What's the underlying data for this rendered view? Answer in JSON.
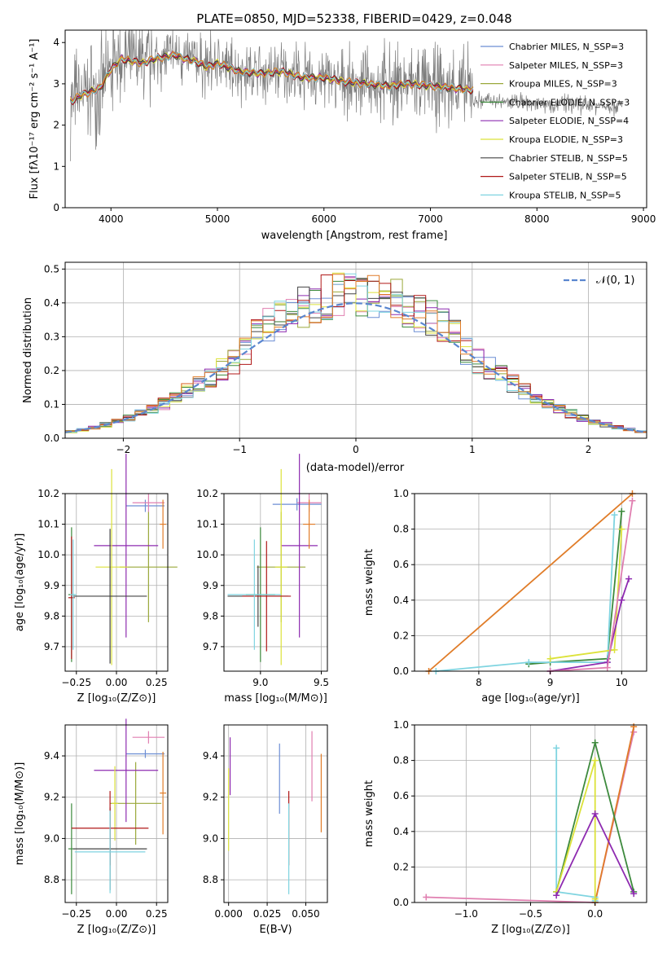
{
  "colors": [
    "#6c8ed4",
    "#e07fb0",
    "#9aa83a",
    "#3d8a3d",
    "#8e2bb0",
    "#dce23a",
    "#444444",
    "#b01818",
    "#7fd4e0"
  ],
  "chart_data": [
    {
      "id": "spectrum",
      "type": "line",
      "title": "PLATE=0850, MJD=52338, FIBERID=0429, z=0.048",
      "xlabel": "wavelength [Angstrom, rest frame]",
      "ylabel": "Flux [fλ10⁻¹⁷ erg cm⁻² s⁻¹ A⁻¹]",
      "xlim": [
        3570,
        9030
      ],
      "ylim": [
        0,
        4.3
      ],
      "xticks": [
        4000,
        5000,
        6000,
        7000,
        8000,
        9000
      ],
      "yticks": [
        0,
        1,
        2,
        3,
        4
      ],
      "legend_position": "upper-right",
      "series": [
        {
          "name": "Chabrier MILES, N_SSP=3"
        },
        {
          "name": "Salpeter MILES, N_SSP=3"
        },
        {
          "name": "Kroupa MILES, N_SSP=3"
        },
        {
          "name": "Chabrier ELODIE, N_SSP=3"
        },
        {
          "name": "Salpeter ELODIE, N_SSP=4"
        },
        {
          "name": "Kroupa ELODIE, N_SSP=3"
        },
        {
          "name": "Chabrier STELIB, N_SSP=5"
        },
        {
          "name": "Salpeter STELIB, N_SSP=5"
        },
        {
          "name": "Kroupa STELIB, N_SSP=5"
        }
      ],
      "model_curve": {
        "x": [
          3650,
          3700,
          3800,
          3900,
          4000,
          4100,
          4200,
          4300,
          4400,
          4500,
          4600,
          4700,
          4800,
          4900,
          5000,
          5200,
          5400,
          5600,
          5800,
          6000,
          6200,
          6400,
          6600,
          6800,
          7000,
          7200,
          7400
        ],
        "y": [
          2.6,
          2.7,
          2.8,
          2.9,
          3.35,
          3.6,
          3.55,
          3.5,
          3.6,
          3.65,
          3.7,
          3.6,
          3.55,
          3.4,
          3.5,
          3.3,
          3.25,
          3.3,
          3.15,
          3.15,
          3.05,
          3.0,
          2.95,
          3.0,
          2.95,
          2.9,
          2.85
        ]
      }
    },
    {
      "id": "residuals",
      "type": "bar",
      "xlabel": "(data-model)/error",
      "ylabel": "Normed distribution",
      "xlim": [
        -2.5,
        2.5
      ],
      "ylim": [
        0,
        0.52
      ],
      "xticks": [
        -2,
        -1,
        0,
        1,
        2
      ],
      "yticks": [
        0.0,
        0.1,
        0.2,
        0.3,
        0.4,
        0.5
      ],
      "legend": "𝒩(0, 1)",
      "legend_position": "upper-right",
      "bin_width": 0.1,
      "bin_start": -2.5
    },
    {
      "id": "age_vs_Z",
      "type": "scatter",
      "xlabel": "Z [log₁₀(Z/Z⊙)]",
      "ylabel": "age  [log₁₀(age/yr)]",
      "xlim": [
        -0.32,
        0.32
      ],
      "ylim": [
        9.62,
        10.2
      ],
      "xticks": [
        -0.25,
        0.0,
        0.25
      ],
      "yticks": [
        9.7,
        9.8,
        9.9,
        10.0,
        10.1,
        10.2
      ],
      "points": [
        {
          "c": 0,
          "x": 0.18,
          "y": 10.16,
          "xe": 0.12,
          "ye": 0.02
        },
        {
          "c": 1,
          "x": 0.2,
          "y": 10.17,
          "xe": 0.1,
          "ye": 0.03
        },
        {
          "c": 2,
          "x": 0.2,
          "y": 9.96,
          "xe": 0.18,
          "ye": 0.18
        },
        {
          "c": 3,
          "x": -0.28,
          "y": 9.87,
          "xe": 0.02,
          "ye": 0.22
        },
        {
          "c": 4,
          "x": 0.06,
          "y": 10.03,
          "xe": 0.2,
          "ye": 0.3
        },
        {
          "c": 5,
          "x": -0.03,
          "y": 9.96,
          "xe": 0.1,
          "ye": 0.32
        },
        {
          "c": 6,
          "x": -0.04,
          "y": 9.865,
          "xe": 0.23,
          "ye": 0.22
        },
        {
          "c": 7,
          "x": -0.28,
          "y": 9.86,
          "xe": 0.02,
          "ye": 0.2
        },
        {
          "c": 8,
          "x": -0.27,
          "y": 9.87,
          "xe": 0.02,
          "ye": 0.18
        },
        {
          "c": 9,
          "x": 0.29,
          "y": 10.1,
          "xe": 0.02,
          "ye": 0.08
        }
      ]
    },
    {
      "id": "age_vs_mass",
      "type": "scatter",
      "xlabel": "mass [log₁₀(M/M⊙)]",
      "ylabel": "",
      "xlim": [
        8.7,
        9.55
      ],
      "ylim": [
        9.62,
        10.2
      ],
      "xticks": [
        9.0,
        9.5
      ],
      "yticks": [
        9.7,
        9.8,
        9.9,
        10.0,
        10.1,
        10.2
      ],
      "points": [
        {
          "c": 0,
          "x": 9.3,
          "y": 10.165,
          "xe": 0.2,
          "ye": 0.02
        },
        {
          "c": 1,
          "x": 9.4,
          "y": 10.17,
          "xe": 0.1,
          "ye": 0.03
        },
        {
          "c": 2,
          "x": 9.17,
          "y": 9.96,
          "xe": 0.2,
          "ye": 0.18
        },
        {
          "c": 3,
          "x": 9.0,
          "y": 9.87,
          "xe": 0.12,
          "ye": 0.22
        },
        {
          "c": 4,
          "x": 9.32,
          "y": 10.03,
          "xe": 0.15,
          "ye": 0.3
        },
        {
          "c": 5,
          "x": 9.17,
          "y": 9.96,
          "xe": 0.05,
          "ye": 0.32
        },
        {
          "c": 6,
          "x": 8.98,
          "y": 9.865,
          "xe": 0.25,
          "ye": 0.1
        },
        {
          "c": 7,
          "x": 9.05,
          "y": 9.865,
          "xe": 0.2,
          "ye": 0.18
        },
        {
          "c": 8,
          "x": 8.95,
          "y": 9.87,
          "xe": 0.22,
          "ye": 0.18
        },
        {
          "c": 9,
          "x": 9.4,
          "y": 10.1,
          "xe": 0.05,
          "ye": 0.08
        }
      ]
    },
    {
      "id": "weight_vs_age",
      "type": "line",
      "xlabel": "age  [log₁₀(age/yr)]",
      "ylabel": "mass weight",
      "xlim": [
        7.1,
        10.35
      ],
      "ylim": [
        0,
        1.0
      ],
      "xticks": [
        8,
        9,
        10
      ],
      "yticks": [
        0.0,
        0.2,
        0.4,
        0.6,
        0.8,
        1.0
      ],
      "series": [
        {
          "c": 9,
          "x": [
            7.3,
            10.15
          ],
          "y": [
            0.0,
            1.0
          ]
        },
        {
          "c": 3,
          "x": [
            8.7,
            9.0,
            9.8,
            10.0
          ],
          "y": [
            0.04,
            0.05,
            0.07,
            0.9
          ]
        },
        {
          "c": 8,
          "x": [
            7.4,
            8.7,
            9.8,
            9.9
          ],
          "y": [
            0.0,
            0.05,
            0.05,
            0.88
          ]
        },
        {
          "c": 5,
          "x": [
            9.0,
            9.9,
            10.0
          ],
          "y": [
            0.07,
            0.12,
            0.8
          ]
        },
        {
          "c": 4,
          "x": [
            9.0,
            9.8,
            10.0,
            10.1
          ],
          "y": [
            0.0,
            0.05,
            0.4,
            0.52
          ]
        },
        {
          "c": 1,
          "x": [
            9.0,
            9.8,
            10.15
          ],
          "y": [
            0.0,
            0.02,
            0.96
          ]
        }
      ]
    },
    {
      "id": "mass_vs_Z",
      "type": "scatter",
      "xlabel": "Z [log₁₀(Z/Z⊙)]",
      "ylabel": "mass [log₁₀(M/M⊙)]",
      "xlim": [
        -0.32,
        0.32
      ],
      "ylim": [
        8.69,
        9.55
      ],
      "xticks": [
        -0.25,
        0.0,
        0.25
      ],
      "yticks": [
        8.8,
        9.0,
        9.2,
        9.4
      ],
      "points": [
        {
          "c": 0,
          "x": 0.18,
          "y": 9.41,
          "xe": 0.12,
          "ye": 0.02
        },
        {
          "c": 1,
          "x": 0.2,
          "y": 9.49,
          "xe": 0.1,
          "ye": 0.03
        },
        {
          "c": 2,
          "x": 0.12,
          "y": 9.17,
          "xe": 0.16,
          "ye": 0.2
        },
        {
          "c": 3,
          "x": -0.28,
          "y": 8.95,
          "xe": 0.02,
          "ye": 0.22
        },
        {
          "c": 4,
          "x": 0.06,
          "y": 9.33,
          "xe": 0.2,
          "ye": 0.25
        },
        {
          "c": 5,
          "x": -0.01,
          "y": 9.17,
          "xe": 0.02,
          "ye": 0.18
        },
        {
          "c": 6,
          "x": -0.04,
          "y": 8.95,
          "xe": 0.23,
          "ye": 0.2
        },
        {
          "c": 7,
          "x": -0.04,
          "y": 9.05,
          "xe": 0.24,
          "ye": 0.18
        },
        {
          "c": 8,
          "x": -0.04,
          "y": 8.935,
          "xe": 0.22,
          "ye": 0.2
        },
        {
          "c": 9,
          "x": 0.29,
          "y": 9.22,
          "xe": 0.02,
          "ye": 0.2
        }
      ]
    },
    {
      "id": "mass_vs_EBV",
      "type": "scatter",
      "xlabel": "E(B-V)",
      "ylabel": "",
      "xlim": [
        -0.003,
        0.064
      ],
      "ylim": [
        8.69,
        9.55
      ],
      "xticks": [
        0.0,
        0.025,
        0.05
      ],
      "xticklabels": [
        "0.000",
        "0.025",
        "0.050"
      ],
      "yticks": [
        8.8,
        9.0,
        9.2,
        9.4
      ],
      "points": [
        {
          "c": 0,
          "x": 0.033,
          "y": 9.29,
          "xe": 0.0,
          "ye": 0.17
        },
        {
          "c": 1,
          "x": 0.054,
          "y": 9.35,
          "xe": 0.0,
          "ye": 0.17
        },
        {
          "c": 4,
          "x": 0.001,
          "y": 9.35,
          "xe": 0.0,
          "ye": 0.14
        },
        {
          "c": 5,
          "x": 0.0,
          "y": 9.14,
          "xe": 0.0,
          "ye": 0.2
        },
        {
          "c": 7,
          "x": 0.039,
          "y": 9.05,
          "xe": 0.0,
          "ye": 0.18
        },
        {
          "c": 8,
          "x": 0.039,
          "y": 8.95,
          "xe": 0.0,
          "ye": 0.22
        },
        {
          "c": 9,
          "x": 0.06,
          "y": 9.22,
          "xe": 0.0,
          "ye": 0.19
        }
      ]
    },
    {
      "id": "weight_vs_Z",
      "type": "line",
      "xlabel": "Z [log₁₀(Z/Z⊙)]",
      "ylabel": "mass weight",
      "xlim": [
        -1.4,
        0.4
      ],
      "ylim": [
        0,
        1.0
      ],
      "xticks": [
        -1.0,
        -0.5,
        0.0
      ],
      "yticks": [
        0.0,
        0.2,
        0.4,
        0.6,
        0.8,
        1.0
      ],
      "series": [
        {
          "c": 1,
          "x": [
            -1.31,
            0.0,
            0.3
          ],
          "y": [
            0.03,
            0.0,
            0.96
          ]
        },
        {
          "c": 9,
          "x": [
            0.0,
            0.3
          ],
          "y": [
            0.0,
            0.99
          ]
        },
        {
          "c": 8,
          "x": [
            -0.3,
            -0.3,
            0.0,
            0.0
          ],
          "y": [
            0.87,
            0.06,
            0.03,
            0.01
          ]
        },
        {
          "c": 3,
          "x": [
            -0.3,
            0.0,
            0.3
          ],
          "y": [
            0.06,
            0.9,
            0.06
          ]
        },
        {
          "c": 5,
          "x": [
            -0.3,
            0.0,
            0.0
          ],
          "y": [
            0.06,
            0.8,
            0.02
          ]
        },
        {
          "c": 4,
          "x": [
            -0.3,
            0.0,
            0.3
          ],
          "y": [
            0.04,
            0.5,
            0.05
          ]
        }
      ]
    }
  ]
}
